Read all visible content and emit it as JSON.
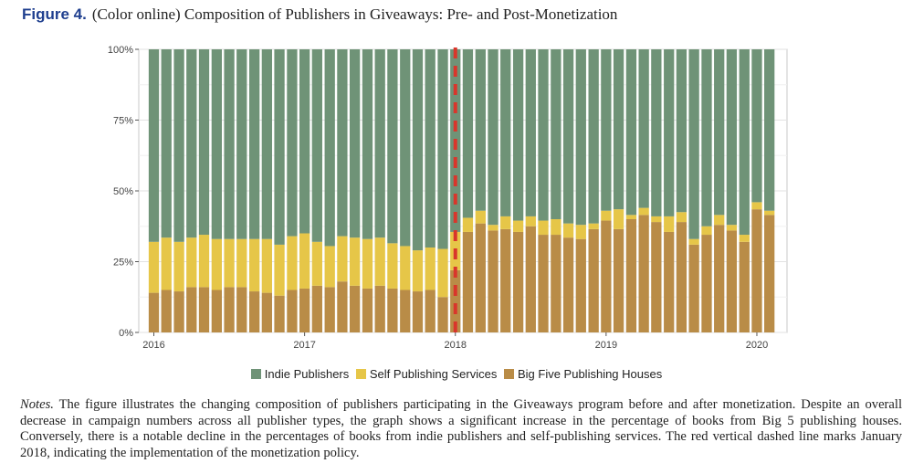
{
  "figure": {
    "label": "Figure 4.",
    "caption": "(Color online) Composition of Publishers in Giveaways: Pre- and Post-Monetization"
  },
  "notes": {
    "label": "Notes.",
    "text": "The figure illustrates the changing composition of publishers participating in the Giveaways program before and after monetization. Despite an overall decrease in campaign numbers across all publisher types, the graph shows a significant increase in the percentage of books from Big 5 publishing houses. Conversely, there is a notable decline in the percentages of books from indie publishers and self-publishing services. The red vertical dashed line marks January 2018, indicating the implementation of the monetization policy."
  },
  "legend_items": [
    {
      "label": "Indie Publishers",
      "color": "#6f9377"
    },
    {
      "label": "Self Publishing Services",
      "color": "#e6c648"
    },
    {
      "label": "Big Five Publishing Houses",
      "color": "#b98c47"
    }
  ],
  "chart_data": {
    "type": "bar",
    "stacked": true,
    "percent_stacked": true,
    "title": "",
    "xlabel": "",
    "ylabel": "",
    "ylim": [
      0,
      1
    ],
    "y_ticks": [
      0,
      0.25,
      0.5,
      0.75,
      1
    ],
    "y_tick_labels": [
      "0%",
      "25%",
      "50%",
      "75%",
      "100%"
    ],
    "x_ticks": [
      2016,
      2017,
      2018,
      2019,
      2020
    ],
    "x_tick_labels": [
      "2016",
      "2017",
      "2018",
      "2019",
      "2020"
    ],
    "xlim": [
      2015.9,
      2020.2
    ],
    "x": [
      2016.0,
      2016.083,
      2016.167,
      2016.25,
      2016.333,
      2016.417,
      2016.5,
      2016.583,
      2016.667,
      2016.75,
      2016.833,
      2016.917,
      2017.0,
      2017.083,
      2017.167,
      2017.25,
      2017.333,
      2017.417,
      2017.5,
      2017.583,
      2017.667,
      2017.75,
      2017.833,
      2017.917,
      2018.0,
      2018.083,
      2018.167,
      2018.25,
      2018.333,
      2018.417,
      2018.5,
      2018.583,
      2018.667,
      2018.75,
      2018.833,
      2018.917,
      2019.0,
      2019.083,
      2019.167,
      2019.25,
      2019.333,
      2019.417,
      2019.5,
      2019.583,
      2019.667,
      2019.75,
      2019.833,
      2019.917,
      2020.0,
      2020.083
    ],
    "series": [
      {
        "name": "Big Five Publishing Houses",
        "color": "#b98c47",
        "values": [
          0.14,
          0.15,
          0.145,
          0.16,
          0.16,
          0.15,
          0.16,
          0.16,
          0.145,
          0.14,
          0.13,
          0.15,
          0.155,
          0.165,
          0.16,
          0.18,
          0.165,
          0.155,
          0.165,
          0.155,
          0.15,
          0.145,
          0.15,
          0.125,
          0.22,
          0.355,
          0.385,
          0.36,
          0.365,
          0.355,
          0.375,
          0.345,
          0.345,
          0.335,
          0.33,
          0.365,
          0.395,
          0.365,
          0.4,
          0.415,
          0.39,
          0.355,
          0.39,
          0.31,
          0.345,
          0.38,
          0.36,
          0.32,
          0.435,
          0.415
        ]
      },
      {
        "name": "Self Publishing Services",
        "color": "#e6c648",
        "values": [
          0.18,
          0.185,
          0.175,
          0.175,
          0.185,
          0.18,
          0.17,
          0.17,
          0.185,
          0.19,
          0.18,
          0.19,
          0.195,
          0.155,
          0.145,
          0.16,
          0.17,
          0.175,
          0.17,
          0.16,
          0.155,
          0.145,
          0.15,
          0.17,
          0.135,
          0.05,
          0.045,
          0.02,
          0.045,
          0.04,
          0.035,
          0.05,
          0.055,
          0.05,
          0.05,
          0.02,
          0.035,
          0.07,
          0.015,
          0.025,
          0.02,
          0.055,
          0.035,
          0.02,
          0.03,
          0.035,
          0.02,
          0.025,
          0.025,
          0.015
        ]
      },
      {
        "name": "Indie Publishers",
        "color": "#6f9377",
        "values": [
          0.68,
          0.665,
          0.68,
          0.665,
          0.655,
          0.67,
          0.67,
          0.67,
          0.67,
          0.67,
          0.69,
          0.66,
          0.65,
          0.68,
          0.695,
          0.66,
          0.665,
          0.67,
          0.665,
          0.685,
          0.695,
          0.71,
          0.7,
          0.705,
          0.645,
          0.595,
          0.57,
          0.62,
          0.59,
          0.605,
          0.59,
          0.605,
          0.6,
          0.615,
          0.62,
          0.615,
          0.57,
          0.565,
          0.585,
          0.56,
          0.59,
          0.59,
          0.575,
          0.67,
          0.625,
          0.585,
          0.62,
          0.655,
          0.54,
          0.57
        ]
      }
    ],
    "stack_order": [
      "Big Five Publishing Houses",
      "Self Publishing Services",
      "Indie Publishers"
    ],
    "reference_line": {
      "x": 2018.0,
      "style": "dashed",
      "color": "#d9362b"
    },
    "grid": true,
    "legend_position": "bottom"
  }
}
